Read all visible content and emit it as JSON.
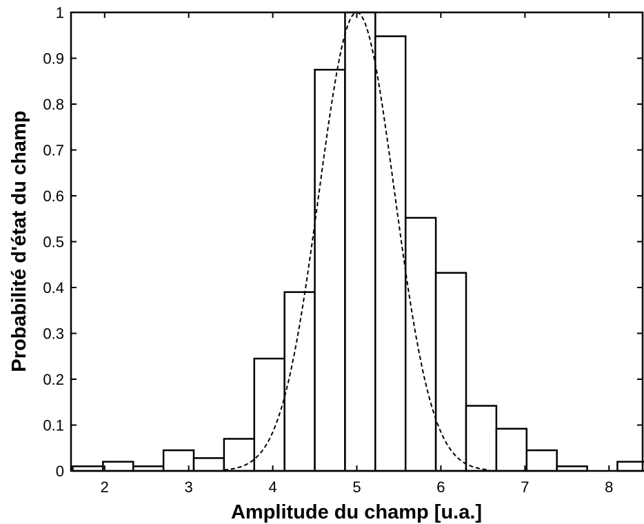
{
  "chart_data": {
    "type": "bar",
    "xlabel": "Amplitude du champ [u.a.]",
    "ylabel": "Probabilité d'état du champ",
    "xlim": [
      1.6,
      8.4
    ],
    "ylim": [
      0,
      1
    ],
    "xticks": [
      "2",
      "3",
      "4",
      "5",
      "6",
      "7",
      "8"
    ],
    "yticks": [
      "0",
      "0.1",
      "0.2",
      "0.3",
      "0.4",
      "0.5",
      "0.6",
      "0.7",
      "0.8",
      "0.9",
      "1"
    ],
    "grid": false,
    "bin_width": 0.36,
    "bin_centers": [
      1.8,
      2.16,
      2.52,
      2.88,
      3.24,
      3.6,
      3.96,
      4.32,
      4.68,
      5.04,
      5.4,
      5.76,
      6.12,
      6.48,
      6.84,
      7.2,
      7.56,
      7.92,
      8.28
    ],
    "values": [
      0.01,
      0.02,
      0.01,
      0.045,
      0.028,
      0.07,
      0.245,
      0.39,
      0.875,
      1.0,
      0.948,
      0.552,
      0.432,
      0.142,
      0.092,
      0.045,
      0.01,
      0.0,
      0.02
    ],
    "fit_curve": {
      "style": "dashed",
      "mean": 5.0,
      "sigma": 0.45,
      "peak": 1.0
    },
    "colors": {
      "bar_fill": "#ffffff",
      "bar_edge": "#000000",
      "curve": "#000000"
    }
  }
}
